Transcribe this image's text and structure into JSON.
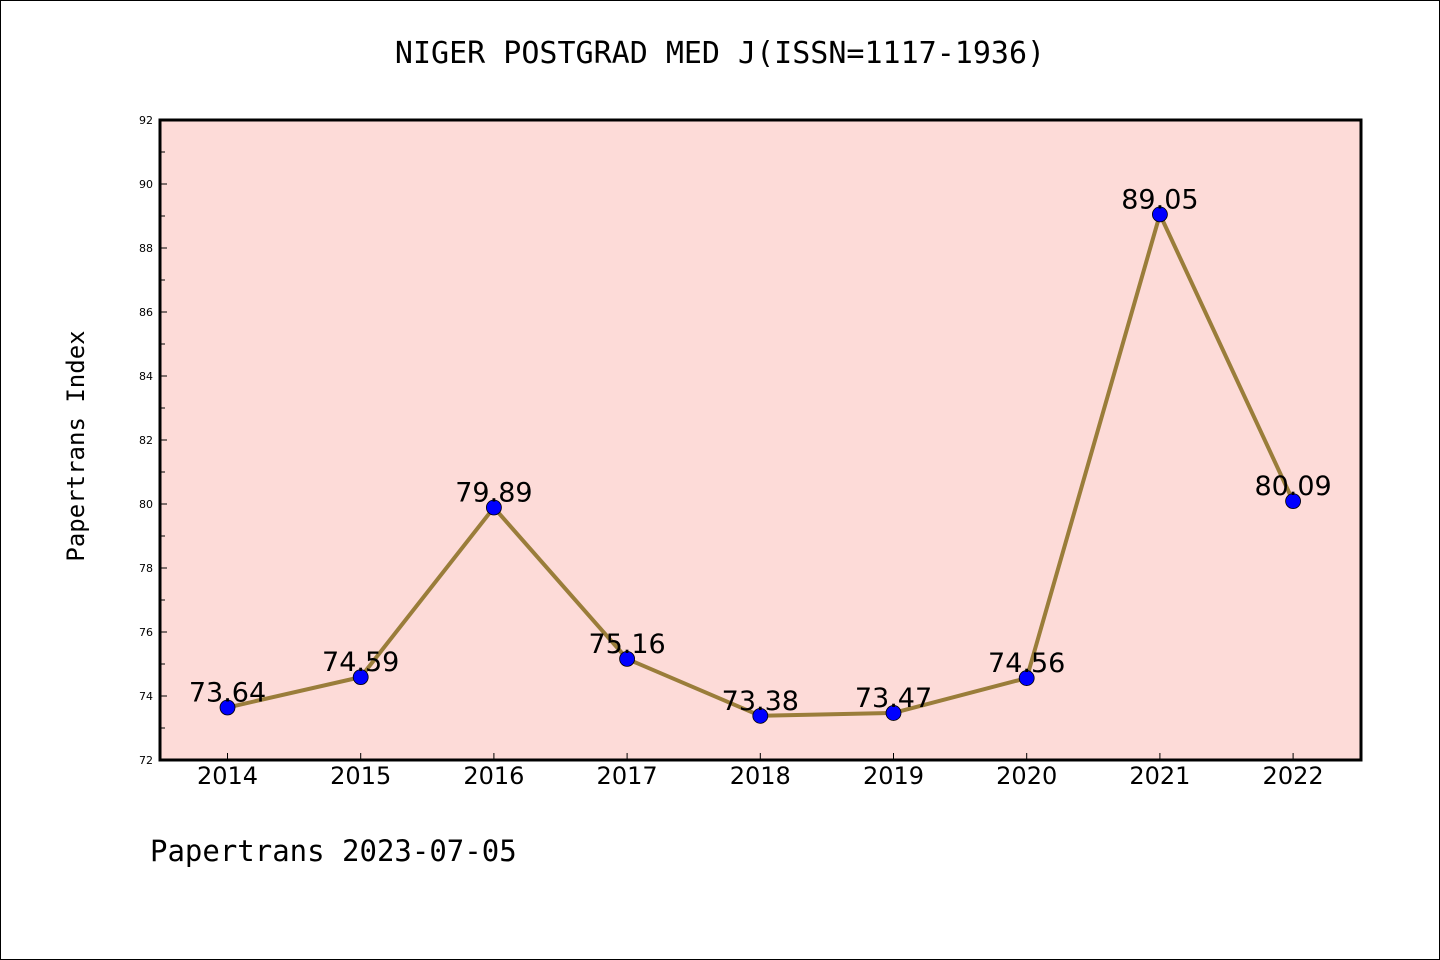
{
  "header": {
    "title": "NIGER POSTGRAD MED J(ISSN=1117-1936)"
  },
  "footer": {
    "text": "Papertrans 2023-07-05"
  },
  "colors": {
    "plot_background": "#fddbd8",
    "line": "#9a7d3a",
    "marker": "#0000ff"
  },
  "chart_data": {
    "type": "line",
    "title": "NIGER POSTGRAD MED J(ISSN=1117-1936)",
    "xlabel": "",
    "ylabel": "Papertrans Index",
    "categories": [
      "2014",
      "2015",
      "2016",
      "2017",
      "2018",
      "2019",
      "2020",
      "2021",
      "2022"
    ],
    "series": [
      {
        "values": [
          73.64,
          74.59,
          79.89,
          75.16,
          73.38,
          73.47,
          74.56,
          89.05,
          80.09
        ],
        "labels": [
          "73.64",
          "74.59",
          "79.89",
          "75.16",
          "73.38",
          "73.47",
          "74.56",
          "89.05",
          "80.09"
        ]
      }
    ],
    "ylim": [
      72,
      92
    ],
    "yticks": [
      "72",
      "74",
      "76",
      "78",
      "80",
      "82",
      "84",
      "86",
      "88",
      "90",
      "92"
    ],
    "grid": false,
    "legend": "none"
  }
}
